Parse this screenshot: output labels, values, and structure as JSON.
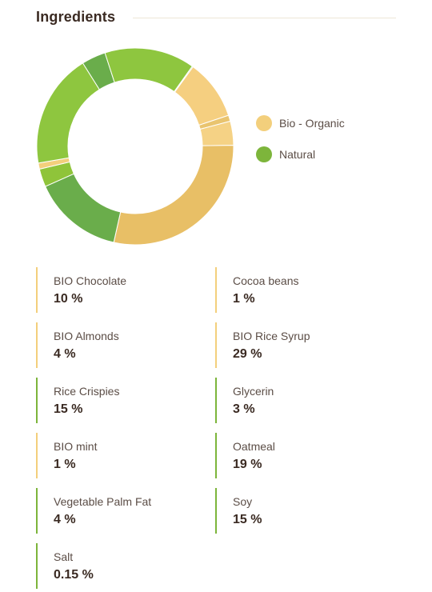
{
  "section": {
    "title": "Ingredients"
  },
  "colors": {
    "bio_organic": "#f3cf7c",
    "natural": "#7db53b"
  },
  "chart_data": {
    "type": "pie",
    "variant": "donut",
    "legend_placement": "right",
    "legend": [
      {
        "label": "Bio - Organic",
        "color": "#f3cf7c"
      },
      {
        "label": "Natural",
        "color": "#7db53b"
      }
    ],
    "slices": [
      {
        "label": "BIO Chocolate",
        "value": 10,
        "category": "Bio - Organic",
        "color": "#f5cf80"
      },
      {
        "label": "Cocoa beans",
        "value": 1,
        "category": "Bio - Organic",
        "color": "#e9c46f"
      },
      {
        "label": "BIO Almonds",
        "value": 4,
        "category": "Bio - Organic",
        "color": "#f5d285"
      },
      {
        "label": "BIO Rice Syrup",
        "value": 29,
        "category": "Bio - Organic",
        "color": "#e8bf66"
      },
      {
        "label": "Rice Crispies",
        "value": 15,
        "category": "Natural",
        "color": "#6aad4b"
      },
      {
        "label": "Glycerin",
        "value": 3,
        "category": "Natural",
        "color": "#8fc43a"
      },
      {
        "label": "BIO mint",
        "value": 1,
        "category": "Bio - Organic",
        "color": "#f3cf7c"
      },
      {
        "label": "Oatmeal",
        "value": 19,
        "category": "Natural",
        "color": "#8ec63f"
      },
      {
        "label": "Vegetable Palm Fat",
        "value": 4,
        "category": "Natural",
        "color": "#6aad4b"
      },
      {
        "label": "Soy",
        "value": 15,
        "category": "Natural",
        "color": "#8ec63f"
      },
      {
        "label": "Salt",
        "value": 0.15,
        "category": "Natural",
        "color": "#7db53b"
      }
    ]
  },
  "ingredients": [
    {
      "name": "BIO Chocolate",
      "value": "10 %",
      "category": "Bio - Organic"
    },
    {
      "name": "Cocoa beans",
      "value": "1 %",
      "category": "Bio - Organic"
    },
    {
      "name": "BIO Almonds",
      "value": "4 %",
      "category": "Bio - Organic"
    },
    {
      "name": "BIO Rice Syrup",
      "value": "29 %",
      "category": "Bio - Organic"
    },
    {
      "name": "Rice Crispies",
      "value": "15 %",
      "category": "Natural"
    },
    {
      "name": "Glycerin",
      "value": "3 %",
      "category": "Natural"
    },
    {
      "name": "BIO mint",
      "value": "1 %",
      "category": "Bio - Organic"
    },
    {
      "name": "Oatmeal",
      "value": "19 %",
      "category": "Natural"
    },
    {
      "name": "Vegetable Palm Fat",
      "value": "4 %",
      "category": "Natural"
    },
    {
      "name": "Soy",
      "value": "15 %",
      "category": "Natural"
    },
    {
      "name": "Salt",
      "value": "0.15 %",
      "category": "Natural"
    }
  ]
}
